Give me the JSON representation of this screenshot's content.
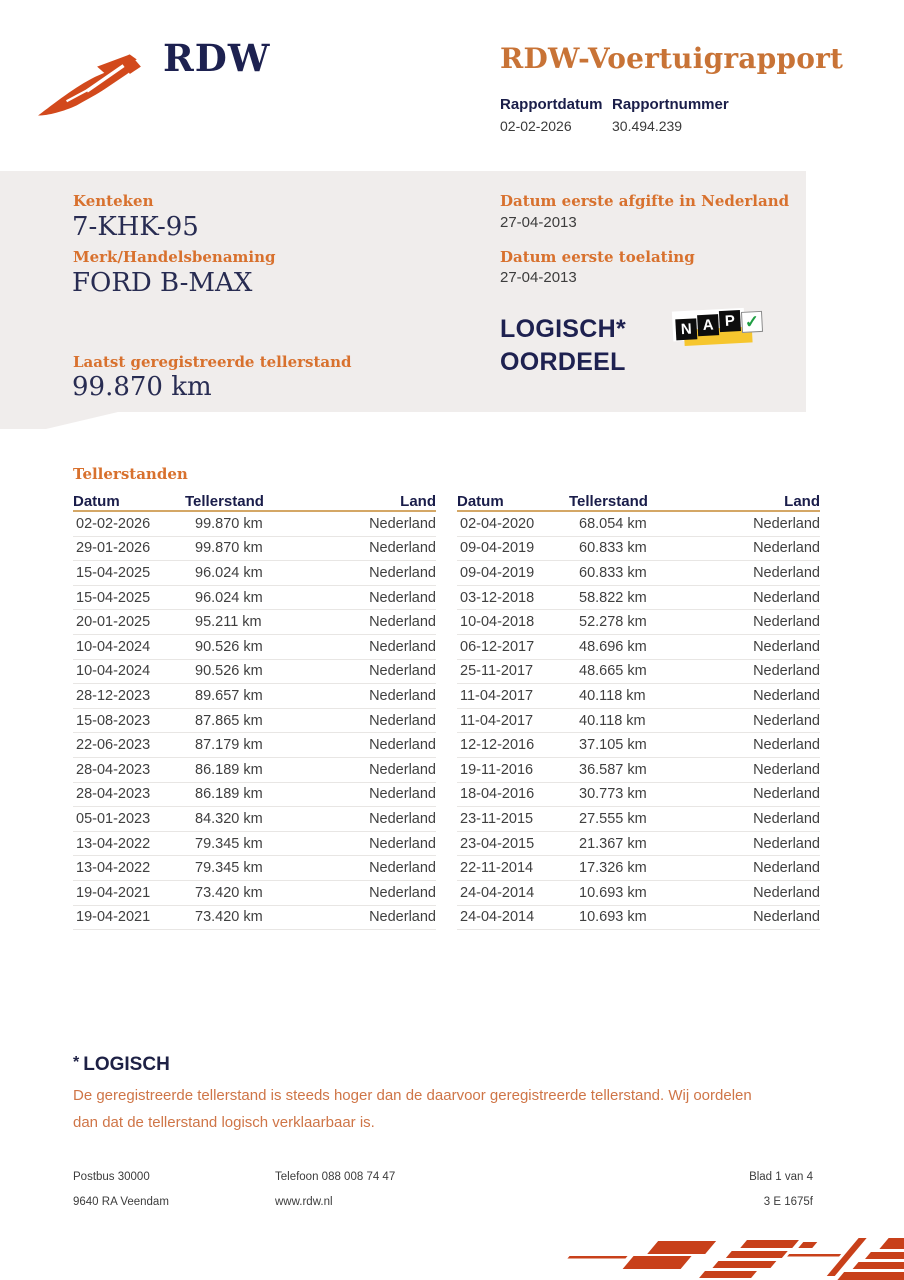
{
  "header": {
    "logo_text": "RDW",
    "title": "RDW-Voertuigrapport",
    "report_date_label": "Rapportdatum",
    "report_date": "02-02-2026",
    "report_number_label": "Rapportnummer",
    "report_number": "30.494.239"
  },
  "vehicle_panel": {
    "kenteken_label": "Kenteken",
    "kenteken": "7-KHK-95",
    "merk_label": "Merk/Handelsbenaming",
    "merk": "FORD B-MAX",
    "afgifte_label": "Datum eerste afgifte in Nederland",
    "afgifte": "27-04-2013",
    "toelating_label": "Datum eerste toelating",
    "toelating": "27-04-2013",
    "tellerstand_label": "Laatst geregistreerde tellerstand",
    "tellerstand": "99.870 km",
    "oordeel_line1": "LOGISCH*",
    "oordeel_line2": "OORDEEL",
    "nap": {
      "letters": [
        "N",
        "A",
        "P"
      ],
      "check": "✓"
    }
  },
  "table_section": {
    "heading": "Tellerstanden",
    "columns": [
      "Datum",
      "Tellerstand",
      "Land"
    ],
    "left_rows": [
      [
        "02-02-2026",
        "99.870 km",
        "Nederland"
      ],
      [
        "29-01-2026",
        "99.870 km",
        "Nederland"
      ],
      [
        "15-04-2025",
        "96.024 km",
        "Nederland"
      ],
      [
        "15-04-2025",
        "96.024 km",
        "Nederland"
      ],
      [
        "20-01-2025",
        "95.211 km",
        "Nederland"
      ],
      [
        "10-04-2024",
        "90.526 km",
        "Nederland"
      ],
      [
        "10-04-2024",
        "90.526 km",
        "Nederland"
      ],
      [
        "28-12-2023",
        "89.657 km",
        "Nederland"
      ],
      [
        "15-08-2023",
        "87.865 km",
        "Nederland"
      ],
      [
        "22-06-2023",
        "87.179 km",
        "Nederland"
      ],
      [
        "28-04-2023",
        "86.189 km",
        "Nederland"
      ],
      [
        "28-04-2023",
        "86.189 km",
        "Nederland"
      ],
      [
        "05-01-2023",
        "84.320 km",
        "Nederland"
      ],
      [
        "13-04-2022",
        "79.345 km",
        "Nederland"
      ],
      [
        "13-04-2022",
        "79.345 km",
        "Nederland"
      ],
      [
        "19-04-2021",
        "73.420 km",
        "Nederland"
      ],
      [
        "19-04-2021",
        "73.420 km",
        "Nederland"
      ]
    ],
    "right_rows": [
      [
        "02-04-2020",
        "68.054 km",
        "Nederland"
      ],
      [
        "09-04-2019",
        "60.833 km",
        "Nederland"
      ],
      [
        "09-04-2019",
        "60.833 km",
        "Nederland"
      ],
      [
        "03-12-2018",
        "58.822 km",
        "Nederland"
      ],
      [
        "10-04-2018",
        "52.278 km",
        "Nederland"
      ],
      [
        "06-12-2017",
        "48.696 km",
        "Nederland"
      ],
      [
        "25-11-2017",
        "48.665 km",
        "Nederland"
      ],
      [
        "11-04-2017",
        "40.118 km",
        "Nederland"
      ],
      [
        "11-04-2017",
        "40.118 km",
        "Nederland"
      ],
      [
        "12-12-2016",
        "37.105 km",
        "Nederland"
      ],
      [
        "19-11-2016",
        "36.587 km",
        "Nederland"
      ],
      [
        "18-04-2016",
        "30.773 km",
        "Nederland"
      ],
      [
        "23-11-2015",
        "27.555 km",
        "Nederland"
      ],
      [
        "23-04-2015",
        "21.367 km",
        "Nederland"
      ],
      [
        "22-11-2014",
        "17.326 km",
        "Nederland"
      ],
      [
        "24-04-2014",
        "10.693 km",
        "Nederland"
      ],
      [
        "24-04-2014",
        "10.693 km",
        "Nederland"
      ]
    ]
  },
  "note": {
    "asterisk": "*",
    "heading": "LOGISCH",
    "body": "De geregistreerde tellerstand is steeds hoger dan de daarvoor geregistreerde tellerstand. Wij oordelen dan dat de tellerstand logisch verklaarbaar is."
  },
  "footer": {
    "address_line1": "Postbus 30000",
    "address_line2": "9640 RA Veendam",
    "phone": "Telefoon 088 008 74 47",
    "website": "www.rdw.nl",
    "page": "Blad 1 van 4",
    "form_code": "3 E 1675f"
  },
  "colors": {
    "accent_orange": "#d8712e",
    "title_orange": "#c87336",
    "note_orange": "#cf7547",
    "navy": "#1d2150",
    "logo_red": "#d2491c",
    "panel_gray": "#f0edec",
    "rule_tan": "#d4a766",
    "nap_yellow": "#f6c62e",
    "nap_green": "#1f9e43"
  }
}
